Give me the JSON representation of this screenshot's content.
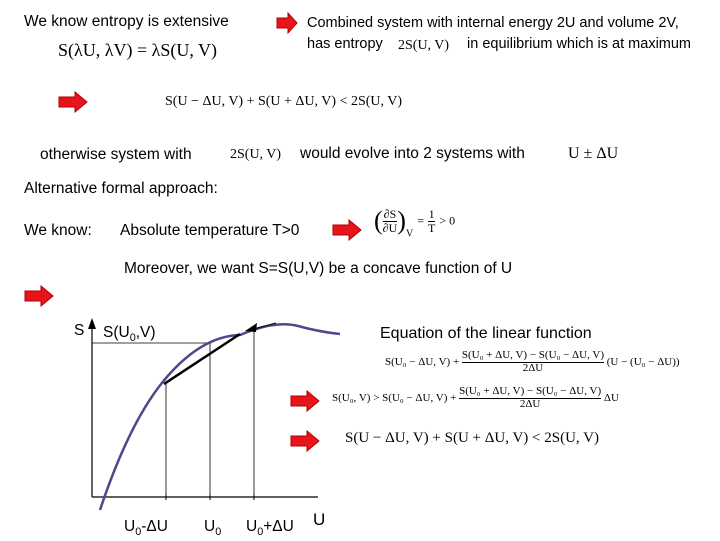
{
  "lines": {
    "l1_left": "We know entropy is extensive",
    "l1_right_a": "Combined system with internal energy 2U and volume 2V,",
    "l1_right_b": "has entropy",
    "l1_right_c": "in equilibrium which is at maximum",
    "otherwise": "otherwise system with",
    "evolve": "would evolve into 2 systems with",
    "alt": "Alternative formal approach:",
    "we_know": "We know:",
    "abs_temp": "Absolute temperature T>0",
    "concave": "Moreover, we want S=S(U,V) be a concave function of U",
    "linear_fn": "Equation of the linear function"
  },
  "equations": {
    "extensive": "S(λU, λV) = λS(U, V)",
    "entropy_2": "2S(U, V)",
    "ineq1": "S(U − ΔU, V) + S(U + ΔU, V) < 2S(U, V)",
    "otherwise_2s": "2S(U, V)",
    "u_pm": "U ± ΔU",
    "dsdu_num": "∂S",
    "dsdu_den": "∂U",
    "dsdu_sub": "V",
    "one": "1",
    "T": "T",
    "gt0": "> 0",
    "lin_lhs": "S(U₀ − ΔU, V) +",
    "lin_num": "S(U₀ + ΔU, V) − S(U₀ − ΔU, V)",
    "lin_den": "2ΔU",
    "lin_rhs": "(U − (U₀ − ΔU))",
    "ineq2_lhs": "S(U₀, V) > S(U₀ − ΔU, V) +",
    "ineq2_num": "S(U₀ + ΔU, V) − S(U₀ − ΔU, V)",
    "ineq2_den": "2ΔU",
    "ineq2_rhs": "ΔU",
    "ineq3": "S(U − ΔU, V) + S(U + ΔU, V) < 2S(U, V)"
  },
  "graph": {
    "y_axis_label": "S",
    "s_u0_label": "S(U",
    "s_u0_sub": "0",
    "s_u0_end": ",V)",
    "x_axis_label": "U",
    "tick_left": "U",
    "tick_left_sub": "0",
    "tick_left_end": "-ΔU",
    "tick_mid": "U",
    "tick_mid_sub": "0",
    "tick_right": "U",
    "tick_right_sub": "0",
    "tick_right_end": "+ΔU",
    "curve_color": "#4a4a8a"
  },
  "colors": {
    "arrow": "#e8141b",
    "arrow_edge": "#b00000"
  }
}
